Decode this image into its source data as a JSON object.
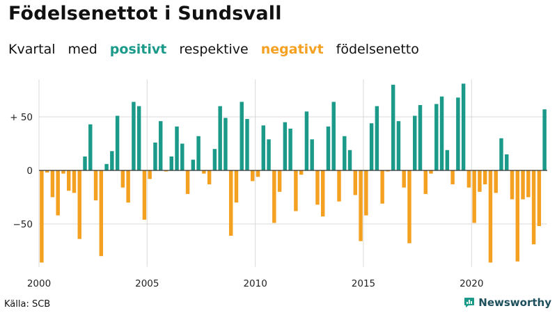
{
  "title": "Födelsenettot i Sundsvall",
  "subtitle": {
    "part1": "Kvartal",
    "part2": "med",
    "positive": "positivt",
    "part3": "respektive",
    "negative": "negativt",
    "part4": "födelsenetto"
  },
  "source": "Källa: SCB",
  "brand": "Newsworthy",
  "colors": {
    "positive": "#1b9a8a",
    "negative": "#f4a020",
    "grid": "#d9d9d9",
    "zero": "#333333"
  },
  "chart_data": {
    "type": "bar",
    "title": "Födelsenettot i Sundsvall",
    "xlabel": "",
    "ylabel": "",
    "start_year": 2000,
    "start_quarter": 1,
    "ylim": [
      -90,
      85
    ],
    "y_ticks": [
      {
        "value": 50,
        "label": "+ 50"
      },
      {
        "value": 0,
        "label": "0"
      },
      {
        "value": -50,
        "label": "−50"
      }
    ],
    "x_ticks": [
      {
        "year": 2000,
        "label": "2000"
      },
      {
        "year": 2005,
        "label": "2005"
      },
      {
        "year": 2010,
        "label": "2010"
      },
      {
        "year": 2015,
        "label": "2015"
      },
      {
        "year": 2020,
        "label": "2020"
      }
    ],
    "values": [
      -86,
      -2,
      -25,
      -42,
      -3,
      -19,
      -21,
      -64,
      13,
      43,
      -28,
      -80,
      6,
      18,
      51,
      -16,
      -30,
      64,
      60,
      -46,
      -8,
      26,
      46,
      -1,
      13,
      41,
      25,
      -22,
      10,
      32,
      -3,
      -13,
      20,
      60,
      49,
      -61,
      -30,
      64,
      48,
      -10,
      -6,
      42,
      29,
      -49,
      -20,
      45,
      39,
      -38,
      -4,
      55,
      29,
      -32,
      -43,
      41,
      64,
      -29,
      32,
      19,
      -23,
      -66,
      -42,
      44,
      60,
      -31,
      -1,
      80,
      46,
      -16,
      -68,
      51,
      61,
      -22,
      -3,
      62,
      69,
      19,
      -13,
      68,
      81,
      -16,
      -49,
      -20,
      -13,
      -86,
      -21,
      30,
      15,
      -27,
      -85,
      -27,
      -25,
      -69,
      -52,
      57
    ]
  }
}
